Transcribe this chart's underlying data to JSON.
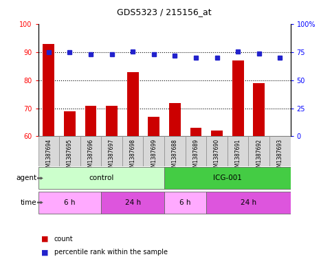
{
  "title": "GDS5323 / 215156_at",
  "samples": [
    "GSM1387694",
    "GSM1387695",
    "GSM1387696",
    "GSM1387697",
    "GSM1387698",
    "GSM1387699",
    "GSM1387688",
    "GSM1387689",
    "GSM1387690",
    "GSM1387691",
    "GSM1387692",
    "GSM1387693"
  ],
  "counts": [
    93,
    69,
    71,
    71,
    83,
    67,
    72,
    63,
    62,
    87,
    79,
    60
  ],
  "percentiles": [
    75,
    75,
    73,
    73,
    76,
    73,
    72,
    70,
    70,
    76,
    74,
    70
  ],
  "ylim_left": [
    60,
    100
  ],
  "ylim_right": [
    0,
    100
  ],
  "yticks_left": [
    60,
    70,
    80,
    90,
    100
  ],
  "yticks_right": [
    0,
    25,
    50,
    75,
    100
  ],
  "ytick_labels_right": [
    "0",
    "25",
    "50",
    "75",
    "100%"
  ],
  "bar_color": "#cc0000",
  "dot_color": "#2222cc",
  "agent_groups": [
    {
      "label": "control",
      "start": 0,
      "end": 6,
      "color": "#ccffcc"
    },
    {
      "label": "ICG-001",
      "start": 6,
      "end": 12,
      "color": "#44cc44"
    }
  ],
  "time_groups": [
    {
      "label": "6 h",
      "start": 0,
      "end": 3,
      "color": "#ffaaff"
    },
    {
      "label": "24 h",
      "start": 3,
      "end": 6,
      "color": "#dd55dd"
    },
    {
      "label": "6 h",
      "start": 6,
      "end": 8,
      "color": "#ffaaff"
    },
    {
      "label": "24 h",
      "start": 8,
      "end": 12,
      "color": "#dd55dd"
    }
  ],
  "legend_items": [
    {
      "label": "count",
      "color": "#cc0000"
    },
    {
      "label": "percentile rank within the sample",
      "color": "#2222cc"
    }
  ]
}
